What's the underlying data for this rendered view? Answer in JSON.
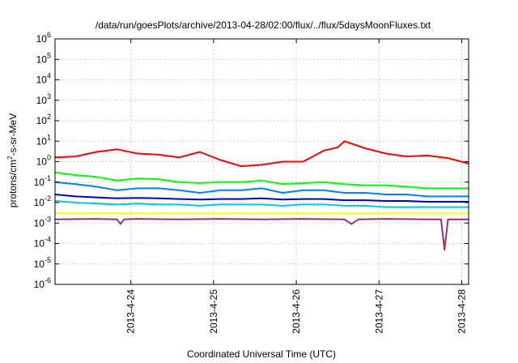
{
  "chart_data": {
    "type": "line",
    "title": "/data/run/goesPlots/archive/2013-04-28/02:00/flux/../flux/5daysMoonFluxes.txt",
    "xlabel": "Coordinated Universal Time (UTC)",
    "ylabel": {
      "prefix": "protons/cm",
      "superscript": "2",
      "suffix": "-s-sr-MeV"
    },
    "y_scale": "log",
    "ylim": [
      1e-06,
      1000000.0
    ],
    "y_ticks": [
      {
        "value": 1e-06,
        "base": "10",
        "exp": "-6"
      },
      {
        "value": 1e-05,
        "base": "10",
        "exp": "-5"
      },
      {
        "value": 0.0001,
        "base": "10",
        "exp": "-4"
      },
      {
        "value": 0.001,
        "base": "10",
        "exp": "-3"
      },
      {
        "value": 0.01,
        "base": "10",
        "exp": "-2"
      },
      {
        "value": 0.1,
        "base": "10",
        "exp": "-1"
      },
      {
        "value": 1,
        "base": "10",
        "exp": "0"
      },
      {
        "value": 10,
        "base": "10",
        "exp": "1"
      },
      {
        "value": 100,
        "base": "10",
        "exp": "2"
      },
      {
        "value": 1000,
        "base": "10",
        "exp": "3"
      },
      {
        "value": 10000,
        "base": "10",
        "exp": "4"
      },
      {
        "value": 100000,
        "base": "10",
        "exp": "5"
      },
      {
        "value": 1000000,
        "base": "10",
        "exp": "6"
      }
    ],
    "xlim": [
      "2013-04-23T02:00",
      "2013-04-28T02:00"
    ],
    "x_ticks": [
      {
        "value": "2013-04-24T00:00",
        "label": "2013-4-24"
      },
      {
        "value": "2013-04-25T00:00",
        "label": "2013-4-25"
      },
      {
        "value": "2013-04-26T00:00",
        "label": "2013-4-26"
      },
      {
        "value": "2013-04-27T00:00",
        "label": "2013-4-27"
      },
      {
        "value": "2013-04-28T00:00",
        "label": "2013-4-28"
      }
    ],
    "grid": true,
    "series": [
      {
        "color": "#ff0000",
        "x": [
          "2013-04-23T02:00",
          "2013-04-23T08:00",
          "2013-04-23T14:00",
          "2013-04-23T20:00",
          "2013-04-24T02:00",
          "2013-04-24T08:00",
          "2013-04-24T14:00",
          "2013-04-24T20:00",
          "2013-04-25T02:00",
          "2013-04-25T08:00",
          "2013-04-25T14:00",
          "2013-04-25T20:00",
          "2013-04-26T02:00",
          "2013-04-26T08:00",
          "2013-04-26T12:00",
          "2013-04-26T14:00",
          "2013-04-26T20:00",
          "2013-04-27T02:00",
          "2013-04-27T08:00",
          "2013-04-27T14:00",
          "2013-04-27T20:00",
          "2013-04-28T02:00"
        ],
        "values": [
          1.6,
          1.8,
          3.0,
          4.0,
          2.5,
          2.2,
          1.6,
          3.0,
          1.2,
          0.6,
          0.7,
          1.0,
          1.0,
          3.5,
          5.0,
          10.0,
          4.5,
          2.5,
          1.8,
          2.0,
          1.5,
          0.8
        ]
      },
      {
        "color": "#00ff00",
        "x": [
          "2013-04-23T02:00",
          "2013-04-23T08:00",
          "2013-04-23T14:00",
          "2013-04-23T20:00",
          "2013-04-24T02:00",
          "2013-04-24T08:00",
          "2013-04-24T14:00",
          "2013-04-24T20:00",
          "2013-04-25T02:00",
          "2013-04-25T08:00",
          "2013-04-25T14:00",
          "2013-04-25T20:00",
          "2013-04-26T02:00",
          "2013-04-26T08:00",
          "2013-04-26T14:00",
          "2013-04-26T20:00",
          "2013-04-27T02:00",
          "2013-04-27T08:00",
          "2013-04-27T14:00",
          "2013-04-27T20:00",
          "2013-04-28T02:00"
        ],
        "values": [
          0.3,
          0.22,
          0.18,
          0.12,
          0.15,
          0.14,
          0.1,
          0.09,
          0.1,
          0.1,
          0.12,
          0.08,
          0.09,
          0.1,
          0.08,
          0.07,
          0.07,
          0.06,
          0.05,
          0.05,
          0.05
        ]
      },
      {
        "color": "#0080ff",
        "x": [
          "2013-04-23T02:00",
          "2013-04-23T08:00",
          "2013-04-23T14:00",
          "2013-04-23T20:00",
          "2013-04-24T02:00",
          "2013-04-24T08:00",
          "2013-04-24T14:00",
          "2013-04-24T20:00",
          "2013-04-25T02:00",
          "2013-04-25T08:00",
          "2013-04-25T14:00",
          "2013-04-25T20:00",
          "2013-04-26T02:00",
          "2013-04-26T08:00",
          "2013-04-26T14:00",
          "2013-04-26T20:00",
          "2013-04-27T02:00",
          "2013-04-27T08:00",
          "2013-04-27T14:00",
          "2013-04-27T20:00",
          "2013-04-28T02:00"
        ],
        "values": [
          0.1,
          0.08,
          0.06,
          0.04,
          0.05,
          0.05,
          0.04,
          0.03,
          0.04,
          0.04,
          0.05,
          0.03,
          0.04,
          0.04,
          0.03,
          0.03,
          0.025,
          0.025,
          0.02,
          0.02,
          0.02
        ]
      },
      {
        "color": "#0000cc",
        "x": [
          "2013-04-23T02:00",
          "2013-04-23T08:00",
          "2013-04-23T14:00",
          "2013-04-23T20:00",
          "2013-04-24T02:00",
          "2013-04-24T08:00",
          "2013-04-24T14:00",
          "2013-04-24T20:00",
          "2013-04-25T02:00",
          "2013-04-25T08:00",
          "2013-04-25T14:00",
          "2013-04-25T20:00",
          "2013-04-26T02:00",
          "2013-04-26T08:00",
          "2013-04-26T14:00",
          "2013-04-26T20:00",
          "2013-04-27T02:00",
          "2013-04-27T08:00",
          "2013-04-27T14:00",
          "2013-04-27T20:00",
          "2013-04-28T02:00"
        ],
        "values": [
          0.025,
          0.02,
          0.018,
          0.016,
          0.017,
          0.016,
          0.015,
          0.014,
          0.015,
          0.015,
          0.016,
          0.014,
          0.015,
          0.015,
          0.013,
          0.013,
          0.012,
          0.012,
          0.011,
          0.011,
          0.011
        ]
      },
      {
        "color": "#00cccc",
        "x": [
          "2013-04-23T02:00",
          "2013-04-23T08:00",
          "2013-04-23T14:00",
          "2013-04-23T20:00",
          "2013-04-24T02:00",
          "2013-04-24T08:00",
          "2013-04-24T14:00",
          "2013-04-24T20:00",
          "2013-04-25T02:00",
          "2013-04-25T08:00",
          "2013-04-25T14:00",
          "2013-04-25T20:00",
          "2013-04-26T02:00",
          "2013-04-26T08:00",
          "2013-04-26T14:00",
          "2013-04-26T20:00",
          "2013-04-27T02:00",
          "2013-04-27T08:00",
          "2013-04-27T14:00",
          "2013-04-27T20:00",
          "2013-04-28T02:00"
        ],
        "values": [
          0.012,
          0.01,
          0.009,
          0.008,
          0.009,
          0.008,
          0.008,
          0.007,
          0.008,
          0.008,
          0.008,
          0.007,
          0.008,
          0.008,
          0.007,
          0.007,
          0.006,
          0.006,
          0.006,
          0.006,
          0.006
        ]
      },
      {
        "color": "#ffff00",
        "x": [
          "2013-04-23T02:00",
          "2013-04-24T02:00",
          "2013-04-25T02:00",
          "2013-04-26T02:00",
          "2013-04-27T02:00",
          "2013-04-28T02:00"
        ],
        "values": [
          0.003,
          0.003,
          0.003,
          0.003,
          0.003,
          0.003
        ]
      },
      {
        "color": "#993366",
        "x": [
          "2013-04-23T02:00",
          "2013-04-23T14:00",
          "2013-04-23T20:00",
          "2013-04-23T21:00",
          "2013-04-23T22:00",
          "2013-04-24T02:00",
          "2013-04-24T14:00",
          "2013-04-25T02:00",
          "2013-04-25T14:00",
          "2013-04-26T02:00",
          "2013-04-26T14:00",
          "2013-04-26T16:00",
          "2013-04-26T18:00",
          "2013-04-27T02:00",
          "2013-04-27T14:00",
          "2013-04-27T18:00",
          "2013-04-27T19:00",
          "2013-04-27T20:00",
          "2013-04-28T02:00"
        ],
        "values": [
          0.0015,
          0.0016,
          0.0015,
          0.0009,
          0.0015,
          0.0016,
          0.0015,
          0.0016,
          0.0015,
          0.0016,
          0.0015,
          0.0009,
          0.0015,
          0.0016,
          0.0015,
          0.0015,
          5e-05,
          0.0015,
          0.0015
        ]
      }
    ]
  }
}
